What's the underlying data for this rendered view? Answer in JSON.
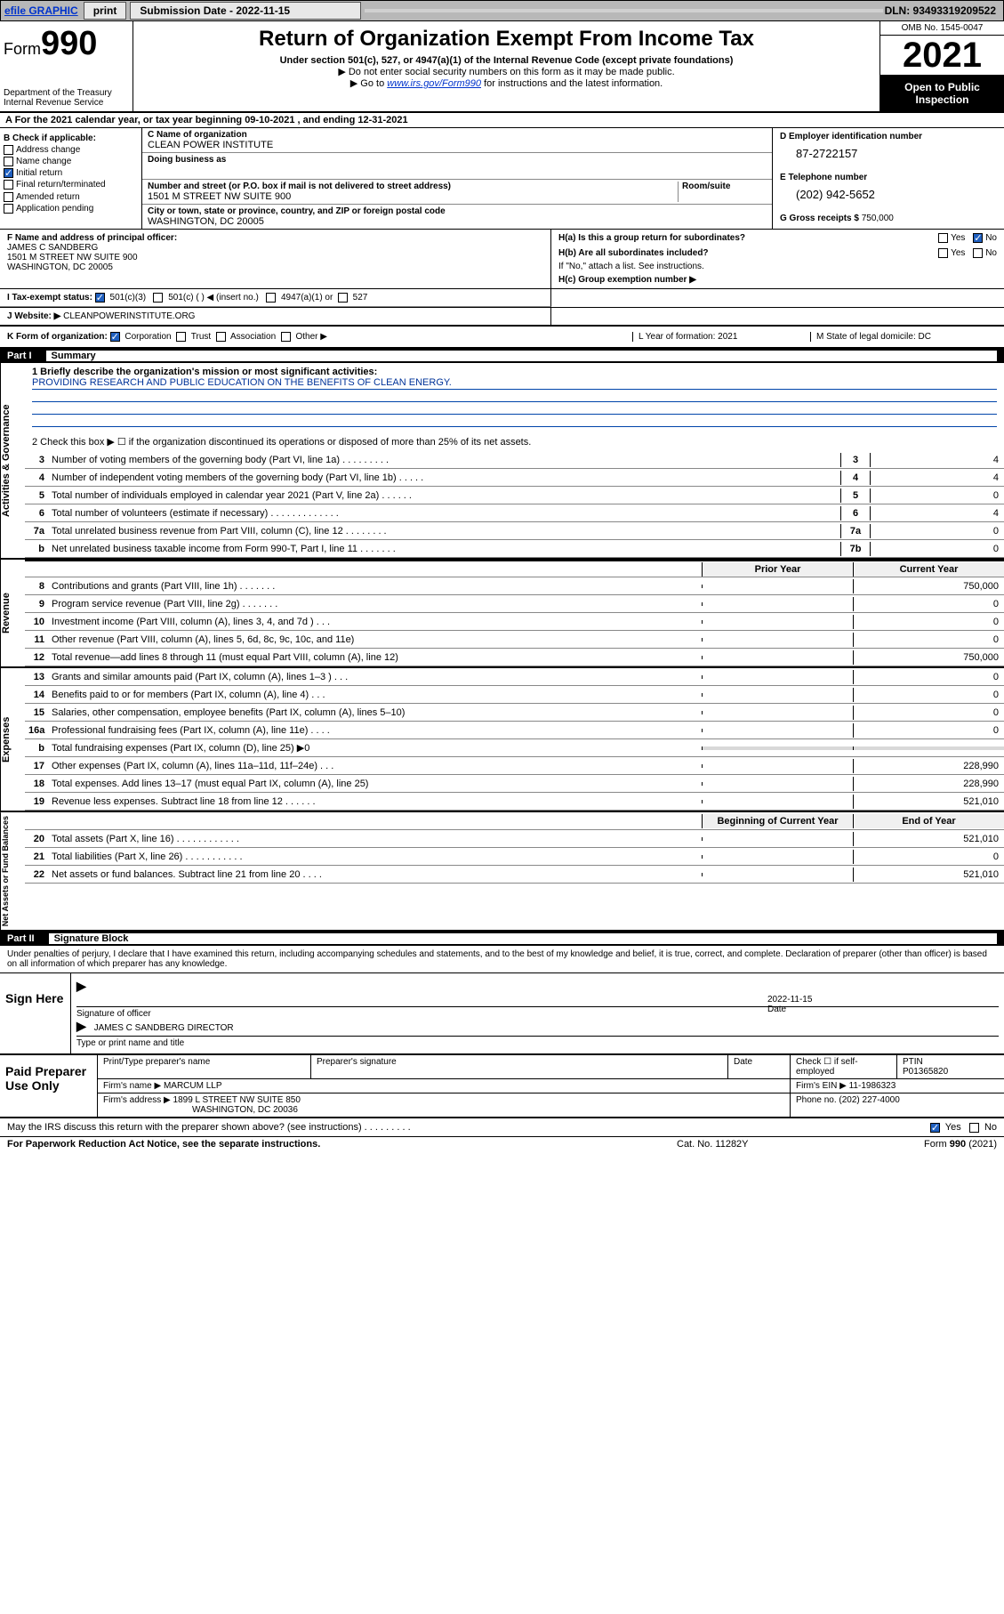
{
  "topbar": {
    "efile_link": "efile GRAPHIC",
    "print_btn": "print",
    "submission_label": "Submission Date - 2022-11-15",
    "dln": "DLN: 93493319209522"
  },
  "header": {
    "form_prefix": "Form",
    "form_number": "990",
    "dept": "Department of the Treasury",
    "irs": "Internal Revenue Service",
    "title": "Return of Organization Exempt From Income Tax",
    "sub": "Under section 501(c), 527, or 4947(a)(1) of the Internal Revenue Code (except private foundations)",
    "instr1": "▶ Do not enter social security numbers on this form as it may be made public.",
    "instr2_pre": "▶ Go to ",
    "instr2_link": "www.irs.gov/Form990",
    "instr2_post": " for instructions and the latest information.",
    "omb": "OMB No. 1545-0047",
    "year": "2021",
    "open": "Open to Public Inspection"
  },
  "row_a": "A For the 2021 calendar year, or tax year beginning 09-10-2021   , and ending 12-31-2021",
  "col_b": {
    "title": "B Check if applicable:",
    "items": [
      {
        "label": "Address change",
        "checked": false
      },
      {
        "label": "Name change",
        "checked": false
      },
      {
        "label": "Initial return",
        "checked": true
      },
      {
        "label": "Final return/terminated",
        "checked": false
      },
      {
        "label": "Amended return",
        "checked": false
      },
      {
        "label": "Application pending",
        "checked": false
      }
    ]
  },
  "col_c": {
    "name_label": "C Name of organization",
    "name": "CLEAN POWER INSTITUTE",
    "dba_label": "Doing business as",
    "dba": "",
    "addr_label": "Number and street (or P.O. box if mail is not delivered to street address)",
    "room_label": "Room/suite",
    "addr": "1501 M STREET NW SUITE 900",
    "city_label": "City or town, state or province, country, and ZIP or foreign postal code",
    "city": "WASHINGTON, DC  20005"
  },
  "col_d": {
    "label": "D Employer identification number",
    "ein": "87-2722157",
    "e_label": "E Telephone number",
    "phone": "(202) 942-5652",
    "g_label": "G Gross receipts $",
    "gross": "750,000"
  },
  "row_f": {
    "label": "F  Name and address of principal officer:",
    "name": "JAMES C SANDBERG",
    "addr1": "1501 M STREET NW SUITE 900",
    "addr2": "WASHINGTON, DC  20005"
  },
  "row_h": {
    "a_label": "H(a)  Is this a group return for subordinates?",
    "a_yes": "Yes",
    "a_no": "No",
    "b_label": "H(b)  Are all subordinates included?",
    "b_yes": "Yes",
    "b_no": "No",
    "b_note": "If \"No,\" attach a list. See instructions.",
    "c_label": "H(c)  Group exemption number ▶"
  },
  "row_i": {
    "label": "I   Tax-exempt status:",
    "opt1": "501(c)(3)",
    "opt2": "501(c) (  ) ◀ (insert no.)",
    "opt3": "4947(a)(1) or",
    "opt4": "527"
  },
  "row_j": {
    "label": "J   Website: ▶",
    "value": "CLEANPOWERINSTITUTE.ORG"
  },
  "row_k": {
    "label": "K Form of organization:",
    "opts": [
      "Corporation",
      "Trust",
      "Association",
      "Other ▶"
    ]
  },
  "row_lm": {
    "l": "L Year of formation: 2021",
    "m": "M State of legal domicile: DC"
  },
  "part1": {
    "pt": "Part I",
    "ti": "Summary"
  },
  "mission": {
    "q1": "1  Briefly describe the organization's mission or most significant activities:",
    "text": "PROVIDING RESEARCH AND PUBLIC EDUCATION ON THE BENEFITS OF CLEAN ENERGY.",
    "q2": "2  Check this box ▶ ☐  if the organization discontinued its operations or disposed of more than 25% of its net assets."
  },
  "section_labels": {
    "gov": "Activities & Governance",
    "rev": "Revenue",
    "exp": "Expenses",
    "net": "Net Assets or Fund Balances"
  },
  "gov_rows": [
    {
      "n": "3",
      "t": "Number of voting members of the governing body (Part VI, line 1a)  .   .   .   .   .   .   .   .   .",
      "bn": "3",
      "bv": "4"
    },
    {
      "n": "4",
      "t": "Number of independent voting members of the governing body (Part VI, line 1b)  .   .   .   .   .",
      "bn": "4",
      "bv": "4"
    },
    {
      "n": "5",
      "t": "Total number of individuals employed in calendar year 2021 (Part V, line 2a)  .   .   .   .   .   .",
      "bn": "5",
      "bv": "0"
    },
    {
      "n": "6",
      "t": "Total number of volunteers (estimate if necessary)  .   .   .   .   .   .   .   .   .   .   .   .   .",
      "bn": "6",
      "bv": "4"
    },
    {
      "n": "7a",
      "t": "Total unrelated business revenue from Part VIII, column (C), line 12  .   .   .   .   .   .   .   .",
      "bn": "7a",
      "bv": "0"
    },
    {
      "n": "b",
      "t": "Net unrelated business taxable income from Form 990-T, Part I, line 11  .   .   .   .   .   .   .",
      "bn": "7b",
      "bv": "0"
    }
  ],
  "py_header": {
    "prior": "Prior Year",
    "curr": "Current Year"
  },
  "rev_rows": [
    {
      "n": "8",
      "t": "Contributions and grants (Part VIII, line 1h)  .   .   .   .   .   .   .",
      "p": "",
      "c": "750,000"
    },
    {
      "n": "9",
      "t": "Program service revenue (Part VIII, line 2g)  .   .   .   .   .   .   .",
      "p": "",
      "c": "0"
    },
    {
      "n": "10",
      "t": "Investment income (Part VIII, column (A), lines 3, 4, and 7d )  .   .   .",
      "p": "",
      "c": "0"
    },
    {
      "n": "11",
      "t": "Other revenue (Part VIII, column (A), lines 5, 6d, 8c, 9c, 10c, and 11e)",
      "p": "",
      "c": "0"
    },
    {
      "n": "12",
      "t": "Total revenue—add lines 8 through 11 (must equal Part VIII, column (A), line 12)",
      "p": "",
      "c": "750,000"
    }
  ],
  "exp_rows": [
    {
      "n": "13",
      "t": "Grants and similar amounts paid (Part IX, column (A), lines 1–3 )  .   .   .",
      "p": "",
      "c": "0"
    },
    {
      "n": "14",
      "t": "Benefits paid to or for members (Part IX, column (A), line 4)  .   .   .",
      "p": "",
      "c": "0"
    },
    {
      "n": "15",
      "t": "Salaries, other compensation, employee benefits (Part IX, column (A), lines 5–10)",
      "p": "",
      "c": "0"
    },
    {
      "n": "16a",
      "t": "Professional fundraising fees (Part IX, column (A), line 11e)  .   .   .   .",
      "p": "",
      "c": "0"
    },
    {
      "n": "b",
      "t": "Total fundraising expenses (Part IX, column (D), line 25) ▶0",
      "p": "shaded",
      "c": "shaded"
    },
    {
      "n": "17",
      "t": "Other expenses (Part IX, column (A), lines 11a–11d, 11f–24e)  .   .   .",
      "p": "",
      "c": "228,990"
    },
    {
      "n": "18",
      "t": "Total expenses. Add lines 13–17 (must equal Part IX, column (A), line 25)",
      "p": "",
      "c": "228,990"
    },
    {
      "n": "19",
      "t": "Revenue less expenses. Subtract line 18 from line 12  .   .   .   .   .   .",
      "p": "",
      "c": "521,010"
    }
  ],
  "net_header": {
    "prior": "Beginning of Current Year",
    "curr": "End of Year"
  },
  "net_rows": [
    {
      "n": "20",
      "t": "Total assets (Part X, line 16)  .   .   .   .   .   .   .   .   .   .   .   .",
      "p": "",
      "c": "521,010"
    },
    {
      "n": "21",
      "t": "Total liabilities (Part X, line 26)  .   .   .   .   .   .   .   .   .   .   .",
      "p": "",
      "c": "0"
    },
    {
      "n": "22",
      "t": "Net assets or fund balances. Subtract line 21 from line 20  .   .   .   .",
      "p": "",
      "c": "521,010"
    }
  ],
  "part2": {
    "pt": "Part II",
    "ti": "Signature Block"
  },
  "sig_text": "Under penalties of perjury, I declare that I have examined this return, including accompanying schedules and statements, and to the best of my knowledge and belief, it is true, correct, and complete. Declaration of preparer (other than officer) is based on all information of which preparer has any knowledge.",
  "sign": {
    "left": "Sign Here",
    "sig_label": "Signature of officer",
    "date_label": "Date",
    "date": "2022-11-15",
    "name": "JAMES C SANDBERG  DIRECTOR",
    "name_label": "Type or print name and title"
  },
  "prep": {
    "left": "Paid Preparer Use Only",
    "h1": "Print/Type preparer's name",
    "h2": "Preparer's signature",
    "h3": "Date",
    "h4a": "Check ☐ if self-employed",
    "h4b": "PTIN",
    "ptin": "P01365820",
    "firm_label": "Firm's name     ▶",
    "firm": "MARCUM LLP",
    "firm_ein_label": "Firm's EIN ▶",
    "firm_ein": "11-1986323",
    "addr_label": "Firm's address ▶",
    "addr1": "1899 L STREET NW SUITE 850",
    "addr2": "WASHINGTON, DC  20036",
    "phone_label": "Phone no.",
    "phone": "(202) 227-4000"
  },
  "discuss": {
    "q": "May the IRS discuss this return with the preparer shown above? (see instructions)  .   .   .   .   .   .   .   .   .",
    "yes": "Yes",
    "no": "No"
  },
  "footer": {
    "a": "For Paperwork Reduction Act Notice, see the separate instructions.",
    "b": "Cat. No. 11282Y",
    "c": "Form 990 (2021)"
  },
  "colors": {
    "link": "#0033cc",
    "check": "#2060c0",
    "underline": "#0044aa"
  }
}
